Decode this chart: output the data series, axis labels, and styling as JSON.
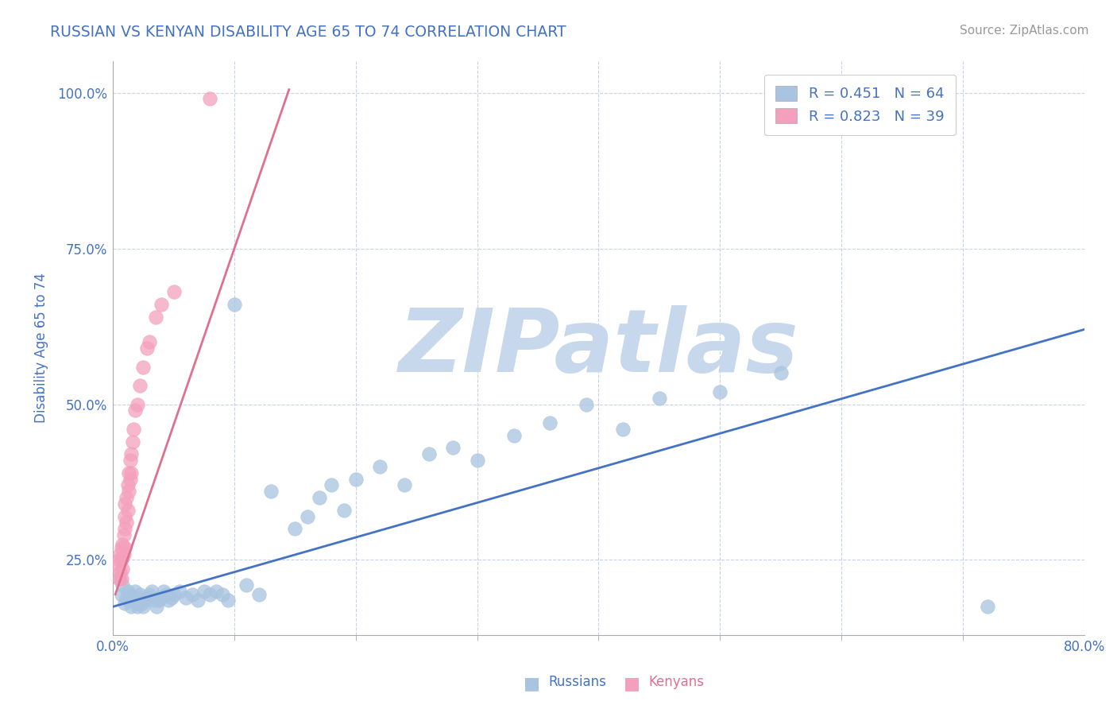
{
  "title": "RUSSIAN VS KENYAN DISABILITY AGE 65 TO 74 CORRELATION CHART",
  "source_text": "Source: ZipAtlas.com",
  "ylabel": "Disability Age 65 to 74",
  "xlim": [
    0.0,
    0.8
  ],
  "ylim": [
    0.13,
    1.05
  ],
  "russian_R": 0.451,
  "russian_N": 64,
  "kenyan_R": 0.823,
  "kenyan_N": 39,
  "russian_color": "#a8c4e0",
  "kenyan_color": "#f4a0bc",
  "russian_line_color": "#4472c4",
  "kenyan_line_color": "#e07090",
  "watermark": "ZIPatlas",
  "watermark_color": "#c8d8ec",
  "background_color": "#ffffff",
  "grid_color": "#c8d4e4",
  "title_color": "#4472c4",
  "source_color": "#999999",
  "russians_x": [
    0.005,
    0.007,
    0.008,
    0.01,
    0.011,
    0.012,
    0.013,
    0.014,
    0.015,
    0.016,
    0.017,
    0.018,
    0.019,
    0.02,
    0.021,
    0.022,
    0.023,
    0.024,
    0.025,
    0.026,
    0.028,
    0.03,
    0.032,
    0.034,
    0.036,
    0.038,
    0.04,
    0.042,
    0.044,
    0.046,
    0.048,
    0.05,
    0.055,
    0.06,
    0.065,
    0.07,
    0.075,
    0.08,
    0.085,
    0.09,
    0.095,
    0.1,
    0.11,
    0.12,
    0.13,
    0.15,
    0.16,
    0.17,
    0.18,
    0.19,
    0.2,
    0.22,
    0.24,
    0.26,
    0.28,
    0.3,
    0.33,
    0.36,
    0.39,
    0.42,
    0.45,
    0.5,
    0.55,
    0.72
  ],
  "russians_y": [
    0.22,
    0.195,
    0.21,
    0.18,
    0.19,
    0.2,
    0.185,
    0.195,
    0.175,
    0.185,
    0.19,
    0.2,
    0.185,
    0.175,
    0.18,
    0.195,
    0.185,
    0.18,
    0.175,
    0.185,
    0.19,
    0.195,
    0.2,
    0.185,
    0.175,
    0.185,
    0.19,
    0.2,
    0.195,
    0.185,
    0.19,
    0.195,
    0.2,
    0.19,
    0.195,
    0.185,
    0.2,
    0.195,
    0.2,
    0.195,
    0.185,
    0.66,
    0.21,
    0.195,
    0.36,
    0.3,
    0.32,
    0.35,
    0.37,
    0.33,
    0.38,
    0.4,
    0.37,
    0.42,
    0.43,
    0.41,
    0.45,
    0.47,
    0.5,
    0.46,
    0.51,
    0.52,
    0.55,
    0.175
  ],
  "kenyans_x": [
    0.004,
    0.005,
    0.005,
    0.006,
    0.006,
    0.007,
    0.007,
    0.007,
    0.008,
    0.008,
    0.008,
    0.009,
    0.009,
    0.01,
    0.01,
    0.01,
    0.01,
    0.011,
    0.011,
    0.012,
    0.012,
    0.013,
    0.013,
    0.014,
    0.014,
    0.015,
    0.015,
    0.016,
    0.017,
    0.018,
    0.02,
    0.022,
    0.025,
    0.028,
    0.03,
    0.035,
    0.04,
    0.05,
    0.08
  ],
  "kenyans_y": [
    0.24,
    0.22,
    0.25,
    0.23,
    0.26,
    0.22,
    0.25,
    0.27,
    0.235,
    0.255,
    0.275,
    0.26,
    0.29,
    0.27,
    0.3,
    0.32,
    0.34,
    0.31,
    0.35,
    0.33,
    0.37,
    0.36,
    0.39,
    0.38,
    0.41,
    0.39,
    0.42,
    0.44,
    0.46,
    0.49,
    0.5,
    0.53,
    0.56,
    0.59,
    0.6,
    0.64,
    0.66,
    0.68,
    0.99
  ],
  "blue_line_x": [
    0.0,
    0.8
  ],
  "blue_line_y": [
    0.175,
    0.62
  ],
  "pink_line_x": [
    0.002,
    0.145
  ],
  "pink_line_y": [
    0.195,
    1.005
  ]
}
